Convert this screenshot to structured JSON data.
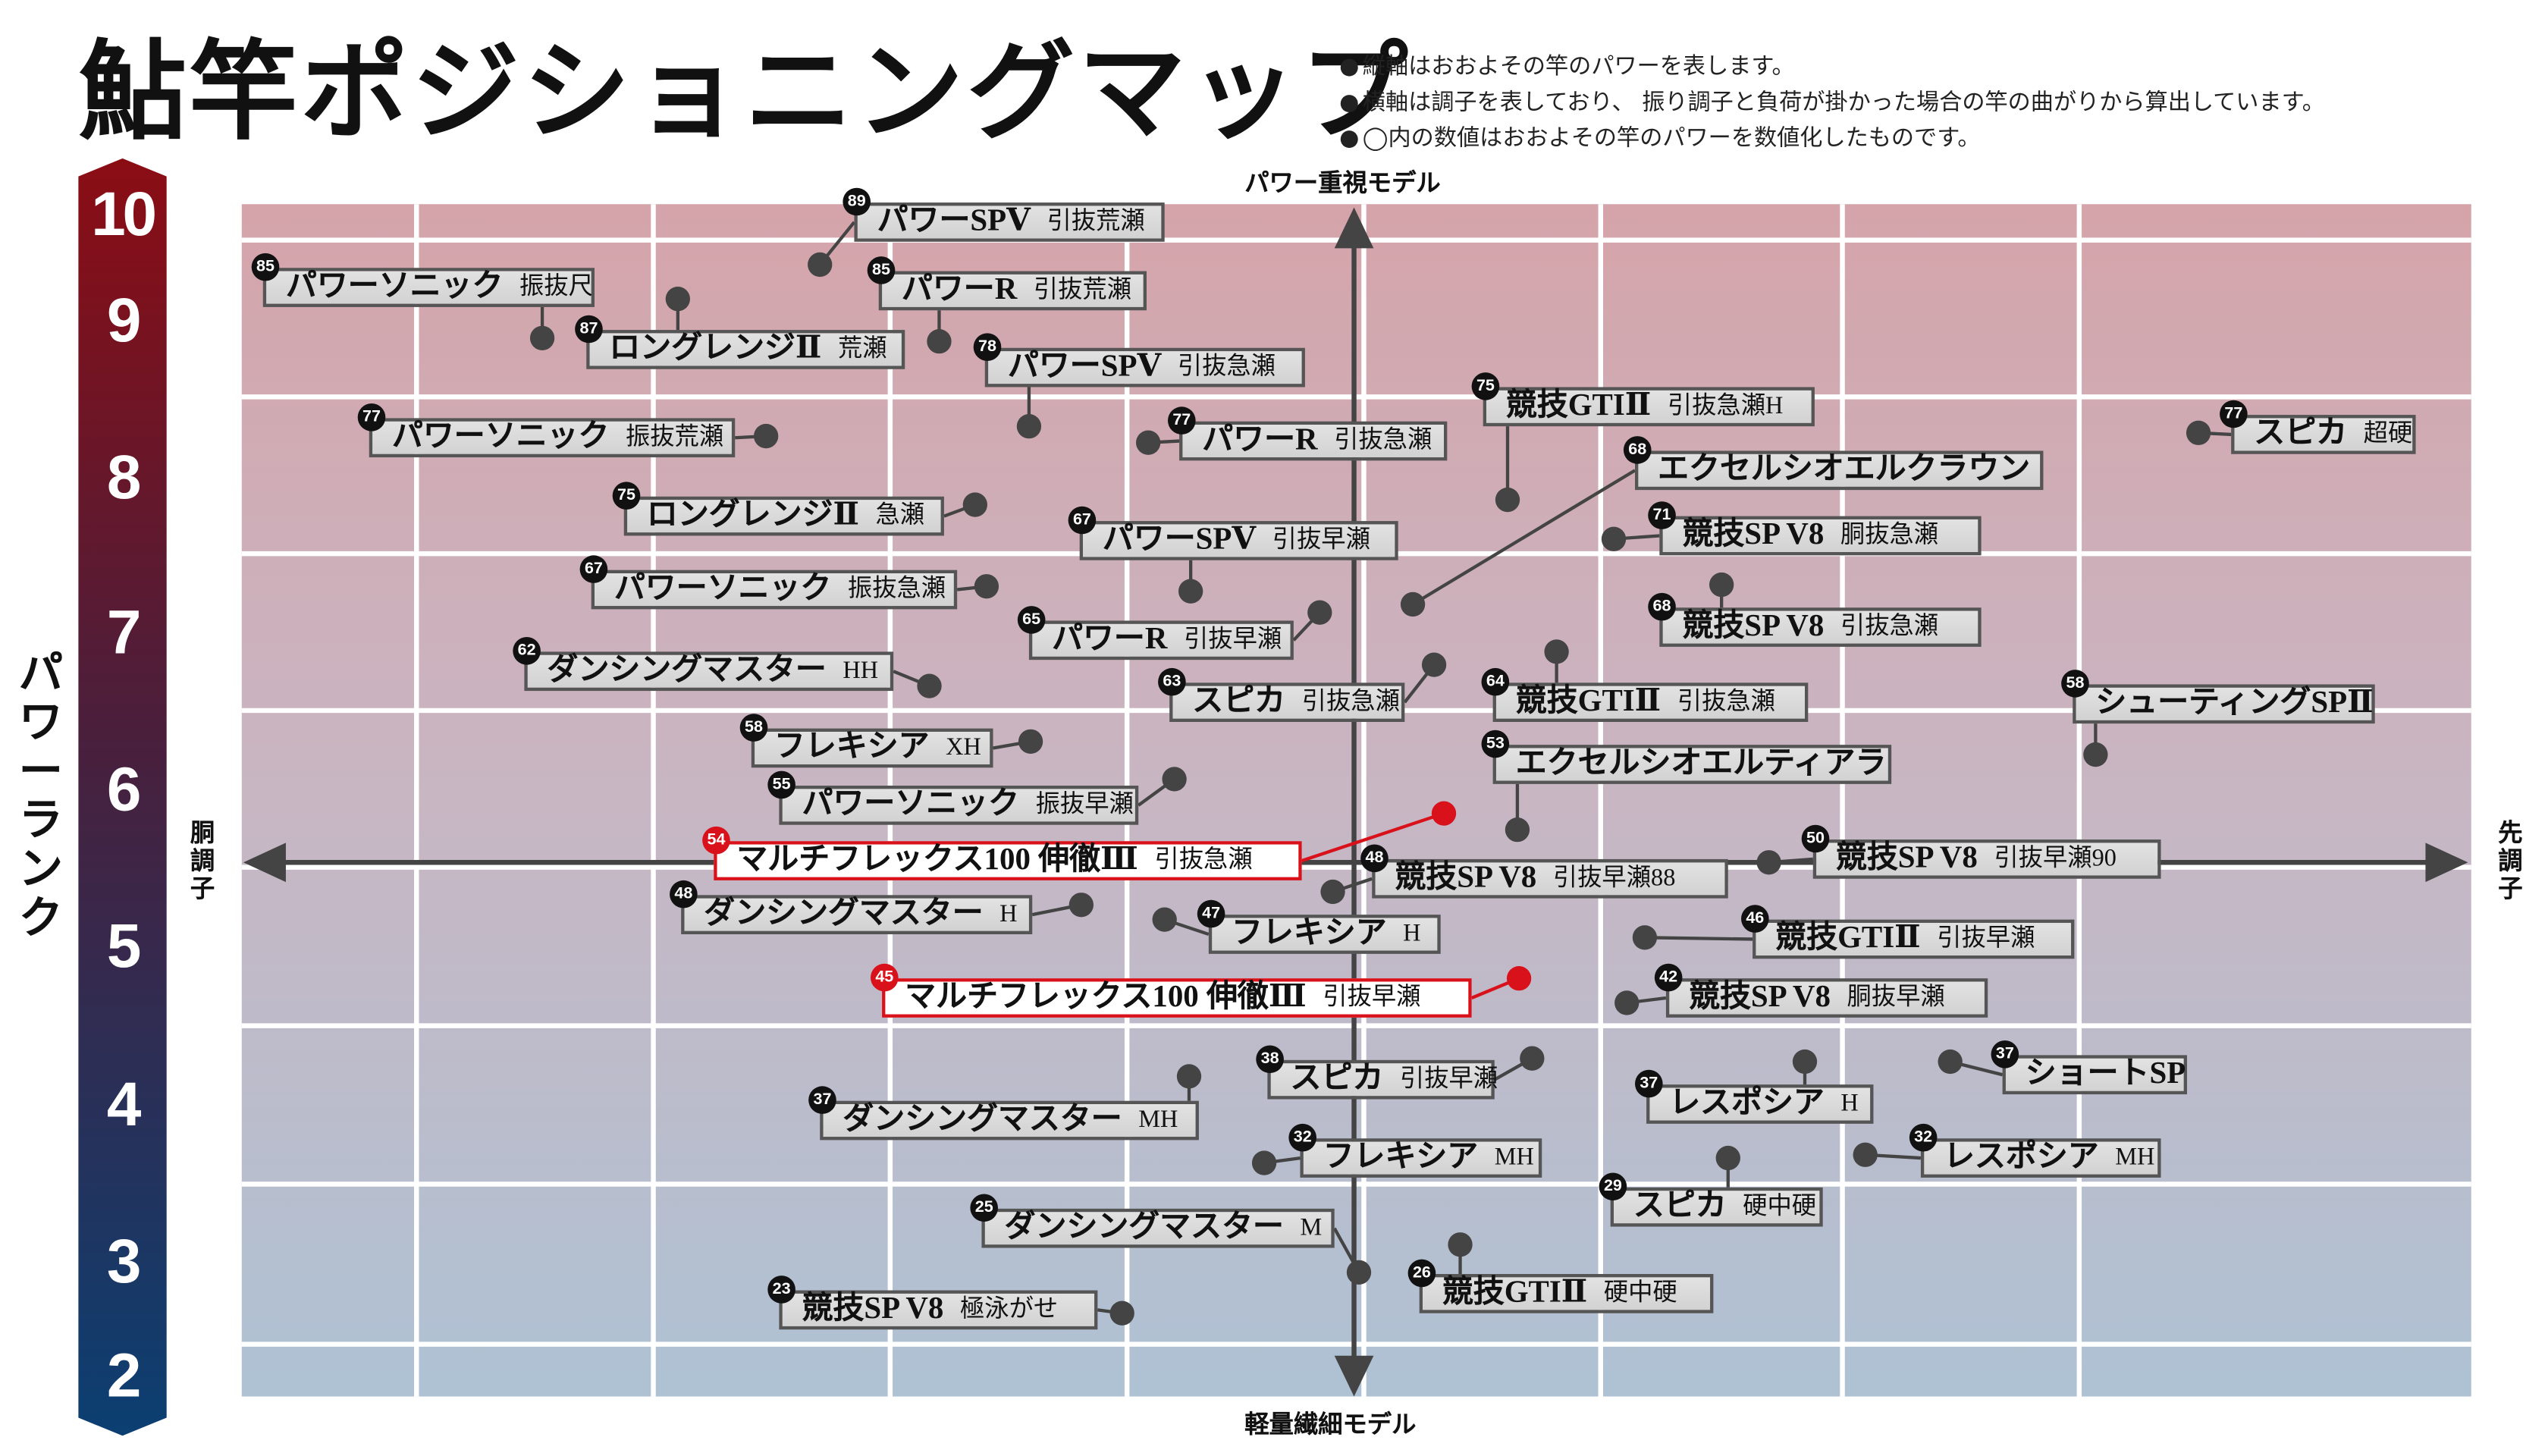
{
  "title": "鮎竿ポジショニングマップ",
  "notes": [
    "縦軸はおおよその竿のパワーを表します。",
    "横軸は調子を表しており、 振り調子と負荷が掛かった場合の竿の曲がりから算出しています。",
    "◯内の数値はおおよその竿のパワーを数値化したものです。"
  ],
  "note_bullet": "●",
  "colors": {
    "accent_red": "#d8111a",
    "rank_top": "#8b0d14",
    "rank_bottom": "#0b3f72",
    "plot_top": "#d5a4aa",
    "plot_bottom": "#aec2d4"
  },
  "chart_data": {
    "type": "scatter",
    "title": "鮎竿ポジショニングマップ",
    "ylabel": "パワーランク",
    "y_ticks": [
      "10",
      "9",
      "8",
      "7",
      "6",
      "5",
      "4",
      "3",
      "2"
    ],
    "ylim": [
      2,
      10
    ],
    "axis_top_label": "パワー重視モデル",
    "axis_bottom_label": "軽量繊細モデル",
    "axis_left_label": "胴調子",
    "axis_right_label": "先調子",
    "x_scale": "胴調子 ↔ 先調子 (no numeric scale)",
    "grid": true,
    "points": [
      {
        "power": "89",
        "name": "パワーSPⅤ",
        "sub": "引抜荒瀬"
      },
      {
        "power": "85",
        "name": "パワーソニック",
        "sub": "振抜尺"
      },
      {
        "power": "85",
        "name": "パワーR",
        "sub": "引抜荒瀬"
      },
      {
        "power": "87",
        "name": "ロングレンジⅡ",
        "sub": "荒瀬"
      },
      {
        "power": "78",
        "name": "パワーSPⅤ",
        "sub": "引抜急瀬"
      },
      {
        "power": "75",
        "name": "競技GTIⅡ",
        "sub": "引抜急瀬H"
      },
      {
        "power": "77",
        "name": "パワーソニック",
        "sub": "振抜荒瀬"
      },
      {
        "power": "77",
        "name": "パワーR",
        "sub": "引抜急瀬"
      },
      {
        "power": "77",
        "name": "スピカ",
        "sub": "超硬"
      },
      {
        "power": "68",
        "name": "エクセルシオエルクラウン",
        "sub": ""
      },
      {
        "power": "75",
        "name": "ロングレンジⅡ",
        "sub": "急瀬"
      },
      {
        "power": "67",
        "name": "パワーSPⅤ",
        "sub": "引抜早瀬"
      },
      {
        "power": "71",
        "name": "競技SP V8",
        "sub": "胴抜急瀬"
      },
      {
        "power": "67",
        "name": "パワーソニック",
        "sub": "振抜急瀬"
      },
      {
        "power": "68",
        "name": "競技SP V8",
        "sub": "引抜急瀬"
      },
      {
        "power": "65",
        "name": "パワーR",
        "sub": "引抜早瀬"
      },
      {
        "power": "62",
        "name": "ダンシングマスター",
        "sub": "HH"
      },
      {
        "power": "63",
        "name": "スピカ",
        "sub": "引抜急瀬"
      },
      {
        "power": "64",
        "name": "競技GTIⅡ",
        "sub": "引抜急瀬"
      },
      {
        "power": "58",
        "name": "シューティングSPⅡ",
        "sub": ""
      },
      {
        "power": "58",
        "name": "フレキシア",
        "sub": "XH"
      },
      {
        "power": "53",
        "name": "エクセルシオエルティアラ",
        "sub": ""
      },
      {
        "power": "55",
        "name": "パワーソニック",
        "sub": "振抜早瀬"
      },
      {
        "power": "54",
        "name": "マルチフレックス100 伸徹Ⅲ",
        "sub": "引抜急瀬",
        "highlight": true
      },
      {
        "power": "48",
        "name": "競技SP V8",
        "sub": "引抜早瀬88"
      },
      {
        "power": "50",
        "name": "競技SP V8",
        "sub": "引抜早瀬90"
      },
      {
        "power": "48",
        "name": "ダンシングマスター",
        "sub": "H"
      },
      {
        "power": "47",
        "name": "フレキシア",
        "sub": "H"
      },
      {
        "power": "46",
        "name": "競技GTIⅡ",
        "sub": "引抜早瀬"
      },
      {
        "power": "45",
        "name": "マルチフレックス100 伸徹Ⅲ",
        "sub": "引抜早瀬",
        "highlight": true
      },
      {
        "power": "42",
        "name": "競技SP V8",
        "sub": "胴抜早瀬"
      },
      {
        "power": "38",
        "name": "スピカ",
        "sub": "引抜早瀬"
      },
      {
        "power": "37",
        "name": "ショートSP",
        "sub": ""
      },
      {
        "power": "37",
        "name": "ダンシングマスター",
        "sub": "MH"
      },
      {
        "power": "37",
        "name": "レスポシア",
        "sub": "H"
      },
      {
        "power": "32",
        "name": "フレキシア",
        "sub": "MH"
      },
      {
        "power": "32",
        "name": "レスポシア",
        "sub": "MH"
      },
      {
        "power": "29",
        "name": "スピカ",
        "sub": "硬中硬"
      },
      {
        "power": "25",
        "name": "ダンシングマスター",
        "sub": "M"
      },
      {
        "power": "26",
        "name": "競技GTIⅡ",
        "sub": "硬中硬"
      },
      {
        "power": "23",
        "name": "競技SP V8",
        "sub": "極泳がせ"
      }
    ]
  }
}
